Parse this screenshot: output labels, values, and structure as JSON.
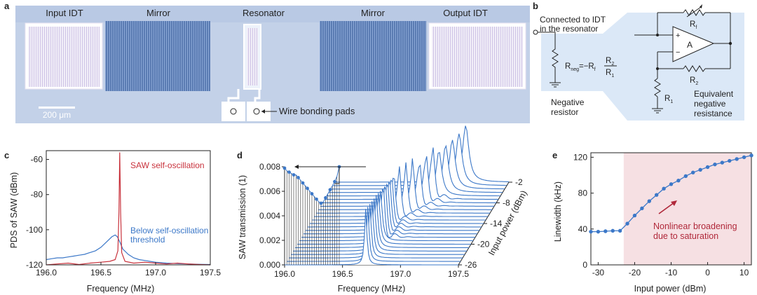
{
  "panel_labels": {
    "a": "a",
    "b": "b",
    "c": "c",
    "d": "d",
    "e": "e"
  },
  "panel_a": {
    "labels": {
      "input_idt": "Input IDT",
      "mirror_left": "Mirror",
      "resonator": "Resonator",
      "mirror_right": "Mirror",
      "output_idt": "Output IDT"
    },
    "scale_bar": "200 μm",
    "pads_label": "Wire bonding pads"
  },
  "panel_b": {
    "connected_line1": "Connected to IDT",
    "connected_line2": "in the resonator",
    "rneg_prefix": "R",
    "rneg_sub": "neg",
    "rneg_eq": "=−R",
    "rneg_f_sub": "f",
    "frac_num_main": "R",
    "frac_num_sub": "2",
    "frac_den_main": "R",
    "frac_den_sub": "1",
    "neg_resistor_line1": "Negative",
    "neg_resistor_line2": "resistor",
    "rf_main": "R",
    "rf_sub": "f",
    "r2_main": "R",
    "r2_sub": "2",
    "r1_main": "R",
    "r1_sub": "1",
    "amp_label": "A",
    "plus": "+",
    "minus": "−",
    "equiv_line1": "Equivalent",
    "equiv_line2": "negative",
    "equiv_line3": "resistance",
    "colors": {
      "shade": "#dbe8f7"
    }
  },
  "chart_data": [
    {
      "id": "c",
      "type": "line",
      "xlabel": "Frequency (MHz)",
      "ylabel": "PDS of SAW (dBm)",
      "xlim": [
        196.0,
        197.5
      ],
      "ylim": [
        -120,
        -55
      ],
      "xticks": [
        196.0,
        196.5,
        197.0,
        197.5
      ],
      "yticks": [
        -60,
        -80,
        -100,
        -120
      ],
      "xtick_labels": [
        "196.0",
        "196.5",
        "197.0",
        "197.5"
      ],
      "ytick_labels": [
        "-60",
        "-80",
        "-100",
        "-120"
      ],
      "series": [
        {
          "name": "SAW self-oscillation",
          "color": "#c8323c",
          "x": [
            196.0,
            196.1,
            196.2,
            196.3,
            196.4,
            196.5,
            196.58,
            196.63,
            196.655,
            196.665,
            196.672,
            196.68,
            196.69,
            196.72,
            196.8,
            196.9,
            197.0,
            197.1,
            197.2,
            197.3,
            197.4,
            197.5
          ],
          "y": [
            -120,
            -119.5,
            -119,
            -119.8,
            -119,
            -118.5,
            -118,
            -117,
            -112,
            -90,
            -56,
            -90,
            -113,
            -118,
            -119,
            -118.5,
            -119,
            -119.5,
            -119,
            -119.5,
            -119.8,
            -120
          ]
        },
        {
          "name": "Below self-oscillation threshold",
          "color": "#3c78c8",
          "x": [
            196.0,
            196.05,
            196.1,
            196.15,
            196.2,
            196.25,
            196.3,
            196.35,
            196.4,
            196.45,
            196.5,
            196.55,
            196.6,
            196.63,
            196.65,
            196.68,
            196.7,
            196.75,
            196.8,
            196.85,
            196.9,
            196.95,
            197.0,
            197.1,
            197.2,
            197.3,
            197.4,
            197.5
          ],
          "y": [
            -117,
            -116.5,
            -116,
            -116,
            -115.5,
            -115,
            -114.5,
            -114,
            -113,
            -112,
            -110,
            -107,
            -104,
            -103,
            -104,
            -108,
            -111,
            -114,
            -116,
            -117,
            -117.5,
            -118,
            -118.5,
            -119,
            -119.3,
            -119.5,
            -119.7,
            -119.8
          ]
        }
      ],
      "annotations": {
        "red": "SAW self-oscillation",
        "blue_line1": "Below self-oscillation",
        "blue_line2": "threshold"
      }
    },
    {
      "id": "d",
      "type": "line",
      "xlabel": "Frequency (MHz)",
      "ylabel": "SAW transmission (1)",
      "zlabel": "Input power (dBm)",
      "xlim": [
        196.0,
        197.5
      ],
      "ylim": [
        0,
        0.008
      ],
      "xticks": [
        196.0,
        196.5,
        197.0,
        197.5
      ],
      "xtick_labels": [
        "196.0",
        "196.5",
        "197.0",
        "197.5"
      ],
      "yticks": [
        0,
        0.002,
        0.004,
        0.006,
        0.008
      ],
      "ytick_labels": [
        "0.000",
        "0.002",
        "0.004",
        "0.006",
        "0.008"
      ],
      "power_levels": [
        -26,
        -25,
        -24,
        -23,
        -22,
        -21,
        -20,
        -19,
        -18,
        -17,
        -16,
        -15,
        -14,
        -13,
        -12,
        -11,
        -10,
        -9,
        -8,
        -7,
        -6,
        -5,
        -4,
        -3,
        -2
      ],
      "power_tick_labels": [
        "-2",
        "-8",
        "-14",
        "-20",
        "-26"
      ],
      "power_tick_values": [
        -2,
        -8,
        -14,
        -20,
        -26
      ],
      "peak_heights": [
        0.0083,
        0.0081,
        0.008,
        0.0079,
        0.0078,
        0.0078,
        0.0076,
        0.0074,
        0.0072,
        0.007,
        0.0068,
        0.0066,
        0.0064,
        0.0062,
        0.006,
        0.0058,
        0.0057,
        0.0058,
        0.0061,
        0.0064,
        0.0067,
        0.007,
        0.0073,
        0.0077,
        0.0084
      ],
      "color": "#3c78c8"
    },
    {
      "id": "e",
      "type": "line",
      "xlabel": "Input power (dBm)",
      "ylabel": "Linewidth (kHz)",
      "xlim": [
        -32,
        12
      ],
      "ylim": [
        0,
        125
      ],
      "xticks": [
        -30,
        -20,
        -10,
        0,
        10
      ],
      "xtick_labels": [
        "-30",
        "-20",
        "-10",
        "0",
        "10"
      ],
      "yticks": [
        0,
        40,
        80,
        120
      ],
      "ytick_labels": [
        "0",
        "40",
        "80",
        "120"
      ],
      "shade_from": -23,
      "x": [
        -32,
        -30,
        -28,
        -26,
        -24,
        -22,
        -20,
        -18,
        -16,
        -14,
        -12,
        -10,
        -8,
        -6,
        -4,
        -2,
        0,
        2,
        4,
        6,
        8,
        10,
        12
      ],
      "y": [
        37,
        37,
        37.5,
        38,
        38,
        46,
        55,
        63,
        71,
        78,
        85,
        90,
        94,
        99,
        103,
        106,
        109,
        112,
        114,
        116,
        118,
        120,
        122
      ],
      "annotation_line1": "Nonlinear broadening",
      "annotation_line2": "due to saturation",
      "colors": {
        "line": "#3c78c8",
        "shade": "#f6e0e3",
        "annotation": "#b0283a"
      }
    }
  ]
}
